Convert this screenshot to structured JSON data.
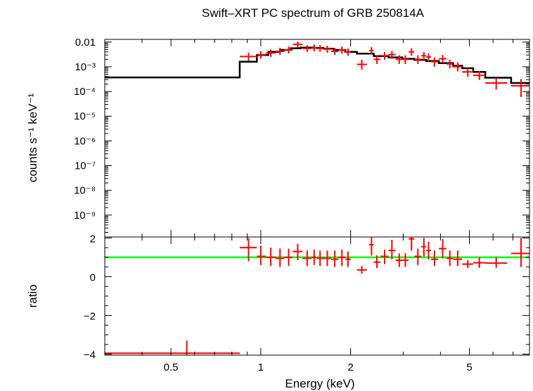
{
  "chart_data": [
    {
      "type": "scatter",
      "title": "Swift–XRT PC spectrum of GRB 250814A",
      "ylabel": "counts s⁻¹ keV⁻¹",
      "xlabel": "",
      "xscale": "log",
      "yscale": "log",
      "xlim": [
        0.3,
        7.95
      ],
      "ylim": [
        1.3e-10,
        0.0128
      ],
      "yticks": [
        {
          "value": 0.01,
          "label": "0.01"
        },
        {
          "value": 0.001,
          "label": "10⁻³"
        },
        {
          "value": 0.0001,
          "label": "10⁻⁴"
        },
        {
          "value": 1e-05,
          "label": "10⁻⁵"
        },
        {
          "value": 1e-06,
          "label": "10⁻⁶"
        },
        {
          "value": 1e-07,
          "label": "10⁻⁷"
        },
        {
          "value": 1e-08,
          "label": "10⁻⁸"
        },
        {
          "value": 1e-09,
          "label": "10⁻⁹"
        }
      ],
      "colors": {
        "data": "#ff0000",
        "model": "#000000"
      },
      "series": [
        {
          "kind": "data",
          "points": [
            {
              "x": 0.91,
              "xlo": 0.85,
              "xhi": 0.97,
              "y": 0.0026,
              "ylo": 0.0017,
              "yhi": 0.0037
            },
            {
              "x": 1.0,
              "xlo": 0.97,
              "xhi": 1.04,
              "y": 0.0031,
              "ylo": 0.0021,
              "yhi": 0.0043
            },
            {
              "x": 1.08,
              "xlo": 1.04,
              "xhi": 1.12,
              "y": 0.0036,
              "ylo": 0.0025,
              "yhi": 0.005
            },
            {
              "x": 1.16,
              "xlo": 1.12,
              "xhi": 1.2,
              "y": 0.0042,
              "ylo": 0.003,
              "yhi": 0.0058
            },
            {
              "x": 1.24,
              "xlo": 1.2,
              "xhi": 1.28,
              "y": 0.0048,
              "ylo": 0.0034,
              "yhi": 0.0066
            },
            {
              "x": 1.33,
              "xlo": 1.28,
              "xhi": 1.38,
              "y": 0.008,
              "ylo": 0.006,
              "yhi": 0.0105
            },
            {
              "x": 1.43,
              "xlo": 1.38,
              "xhi": 1.48,
              "y": 0.0055,
              "ylo": 0.004,
              "yhi": 0.0074
            },
            {
              "x": 1.51,
              "xlo": 1.48,
              "xhi": 1.54,
              "y": 0.0058,
              "ylo": 0.0042,
              "yhi": 0.0079
            },
            {
              "x": 1.58,
              "xlo": 1.54,
              "xhi": 1.62,
              "y": 0.0055,
              "ylo": 0.004,
              "yhi": 0.0075
            },
            {
              "x": 1.67,
              "xlo": 1.62,
              "xhi": 1.72,
              "y": 0.0052,
              "ylo": 0.0037,
              "yhi": 0.0071
            },
            {
              "x": 1.77,
              "xlo": 1.72,
              "xhi": 1.82,
              "y": 0.0042,
              "ylo": 0.003,
              "yhi": 0.0058
            },
            {
              "x": 1.87,
              "xlo": 1.82,
              "xhi": 1.92,
              "y": 0.0048,
              "ylo": 0.0034,
              "yhi": 0.0066
            },
            {
              "x": 1.96,
              "xlo": 1.92,
              "xhi": 2.0,
              "y": 0.004,
              "ylo": 0.0028,
              "yhi": 0.0055
            },
            {
              "x": 2.18,
              "xlo": 2.1,
              "xhi": 2.27,
              "y": 0.00125,
              "ylo": 0.00075,
              "yhi": 0.0019
            },
            {
              "x": 2.35,
              "xlo": 2.31,
              "xhi": 2.39,
              "y": 0.0045,
              "ylo": 0.0032,
              "yhi": 0.0062
            },
            {
              "x": 2.45,
              "xlo": 2.39,
              "xhi": 2.52,
              "y": 0.002,
              "ylo": 0.0013,
              "yhi": 0.0029
            },
            {
              "x": 2.6,
              "xlo": 2.52,
              "xhi": 2.68,
              "y": 0.0028,
              "ylo": 0.0019,
              "yhi": 0.0039
            },
            {
              "x": 2.75,
              "xlo": 2.68,
              "xhi": 2.83,
              "y": 0.0031,
              "ylo": 0.0021,
              "yhi": 0.0043
            },
            {
              "x": 2.91,
              "xlo": 2.83,
              "xhi": 2.98,
              "y": 0.002,
              "ylo": 0.0013,
              "yhi": 0.0029
            },
            {
              "x": 3.05,
              "xlo": 2.98,
              "xhi": 3.13,
              "y": 0.002,
              "ylo": 0.0013,
              "yhi": 0.0029
            },
            {
              "x": 3.2,
              "xlo": 3.13,
              "xhi": 3.27,
              "y": 0.004,
              "ylo": 0.0028,
              "yhi": 0.0056
            },
            {
              "x": 3.36,
              "xlo": 3.27,
              "xhi": 3.45,
              "y": 0.002,
              "ylo": 0.0013,
              "yhi": 0.0029
            },
            {
              "x": 3.52,
              "xlo": 3.45,
              "xhi": 3.58,
              "y": 0.0028,
              "ylo": 0.0019,
              "yhi": 0.0039
            },
            {
              "x": 3.65,
              "xlo": 3.58,
              "xhi": 3.72,
              "y": 0.0025,
              "ylo": 0.0017,
              "yhi": 0.0035
            },
            {
              "x": 3.82,
              "xlo": 3.72,
              "xhi": 3.93,
              "y": 0.0016,
              "ylo": 0.001,
              "yhi": 0.0024
            },
            {
              "x": 4.07,
              "xlo": 3.95,
              "xhi": 4.19,
              "y": 0.0021,
              "ylo": 0.0014,
              "yhi": 0.003
            },
            {
              "x": 4.3,
              "xlo": 4.19,
              "xhi": 4.41,
              "y": 0.0013,
              "ylo": 0.00085,
              "yhi": 0.0019
            },
            {
              "x": 4.57,
              "xlo": 4.41,
              "xhi": 4.73,
              "y": 0.001,
              "ylo": 0.00065,
              "yhi": 0.0015
            },
            {
              "x": 4.94,
              "xlo": 4.73,
              "xhi": 5.15,
              "y": 0.00062,
              "ylo": 0.00039,
              "yhi": 0.00092
            },
            {
              "x": 5.4,
              "xlo": 5.15,
              "xhi": 5.65,
              "y": 0.00045,
              "ylo": 0.00029,
              "yhi": 0.00067
            },
            {
              "x": 6.15,
              "xlo": 5.65,
              "xhi": 6.7,
              "y": 0.00022,
              "ylo": 0.00012,
              "yhi": 0.00036
            },
            {
              "x": 7.45,
              "xlo": 6.9,
              "xhi": 7.95,
              "y": 0.00017,
              "ylo": 6e-05,
              "yhi": 0.00032
            }
          ]
        },
        {
          "kind": "model",
          "steps": [
            {
              "x0": 0.3,
              "x1": 0.85,
              "y": 0.00037
            },
            {
              "x0": 0.85,
              "x1": 0.97,
              "y": 0.0016
            },
            {
              "x0": 0.97,
              "x1": 1.06,
              "y": 0.003
            },
            {
              "x0": 1.06,
              "x1": 1.16,
              "y": 0.004
            },
            {
              "x0": 1.16,
              "x1": 1.26,
              "y": 0.0048
            },
            {
              "x0": 1.26,
              "x1": 1.36,
              "y": 0.0056
            },
            {
              "x0": 1.36,
              "x1": 1.5,
              "y": 0.006
            },
            {
              "x0": 1.5,
              "x1": 1.62,
              "y": 0.0058
            },
            {
              "x0": 1.62,
              "x1": 1.76,
              "y": 0.0054
            },
            {
              "x0": 1.76,
              "x1": 1.92,
              "y": 0.0048
            },
            {
              "x0": 1.92,
              "x1": 2.1,
              "y": 0.004
            },
            {
              "x0": 2.1,
              "x1": 2.39,
              "y": 0.0034
            },
            {
              "x0": 2.39,
              "x1": 2.68,
              "y": 0.0027
            },
            {
              "x0": 2.68,
              "x1": 2.98,
              "y": 0.0024
            },
            {
              "x0": 2.98,
              "x1": 3.27,
              "y": 0.0021
            },
            {
              "x0": 3.27,
              "x1": 3.58,
              "y": 0.0019
            },
            {
              "x0": 3.58,
              "x1": 3.95,
              "y": 0.0017
            },
            {
              "x0": 3.95,
              "x1": 4.41,
              "y": 0.0014
            },
            {
              "x0": 4.41,
              "x1": 4.73,
              "y": 0.0011
            },
            {
              "x0": 4.73,
              "x1": 5.15,
              "y": 0.00087
            },
            {
              "x0": 5.15,
              "x1": 5.65,
              "y": 0.00062
            },
            {
              "x0": 5.65,
              "x1": 6.9,
              "y": 0.00036
            },
            {
              "x0": 6.9,
              "x1": 7.95,
              "y": 0.00022
            }
          ]
        }
      ]
    },
    {
      "type": "scatter",
      "ylabel": "ratio",
      "xlabel": "Energy (keV)",
      "xscale": "log",
      "xlim": [
        0.3,
        7.95
      ],
      "ylim": [
        -4.05,
        2.05
      ],
      "xticks": [
        {
          "value": 0.5,
          "label": "0.5"
        },
        {
          "value": 1,
          "label": "1"
        },
        {
          "value": 2,
          "label": "2"
        },
        {
          "value": 5,
          "label": "5"
        }
      ],
      "yticks": [
        {
          "value": 2,
          "label": "2"
        },
        {
          "value": 0,
          "label": "0"
        },
        {
          "value": -2,
          "label": "−2"
        },
        {
          "value": -4,
          "label": "−4"
        }
      ],
      "reference_line": 1,
      "colors": {
        "data": "#ff0000",
        "reference": "#00ff00"
      },
      "series": [
        {
          "kind": "data",
          "points": [
            {
              "x": 0.565,
              "xlo": 0.3,
              "xhi": 0.85,
              "y": -3.95,
              "ylo": -4.05,
              "yhi": -3.3
            },
            {
              "x": 0.91,
              "xlo": 0.85,
              "xhi": 0.97,
              "y": 1.5,
              "ylo": 0.8,
              "yhi": 2.0
            },
            {
              "x": 1.0,
              "xlo": 0.97,
              "xhi": 1.04,
              "y": 1.05,
              "ylo": 0.6,
              "yhi": 1.6
            },
            {
              "x": 1.08,
              "xlo": 1.04,
              "xhi": 1.12,
              "y": 1.0,
              "ylo": 0.55,
              "yhi": 1.5
            },
            {
              "x": 1.16,
              "xlo": 1.12,
              "xhi": 1.2,
              "y": 0.95,
              "ylo": 0.5,
              "yhi": 1.45
            },
            {
              "x": 1.24,
              "xlo": 1.2,
              "xhi": 1.28,
              "y": 1.0,
              "ylo": 0.55,
              "yhi": 1.45
            },
            {
              "x": 1.33,
              "xlo": 1.28,
              "xhi": 1.38,
              "y": 1.3,
              "ylo": 0.85,
              "yhi": 1.7
            },
            {
              "x": 1.43,
              "xlo": 1.38,
              "xhi": 1.48,
              "y": 0.95,
              "ylo": 0.55,
              "yhi": 1.35
            },
            {
              "x": 1.51,
              "xlo": 1.48,
              "xhi": 1.54,
              "y": 1.0,
              "ylo": 0.6,
              "yhi": 1.4
            },
            {
              "x": 1.58,
              "xlo": 1.54,
              "xhi": 1.62,
              "y": 0.95,
              "ylo": 0.55,
              "yhi": 1.35
            },
            {
              "x": 1.67,
              "xlo": 1.62,
              "xhi": 1.72,
              "y": 0.95,
              "ylo": 0.55,
              "yhi": 1.35
            },
            {
              "x": 1.77,
              "xlo": 1.72,
              "xhi": 1.82,
              "y": 0.9,
              "ylo": 0.5,
              "yhi": 1.35
            },
            {
              "x": 1.87,
              "xlo": 1.82,
              "xhi": 1.92,
              "y": 1.0,
              "ylo": 0.55,
              "yhi": 1.4
            },
            {
              "x": 1.96,
              "xlo": 1.92,
              "xhi": 2.0,
              "y": 0.9,
              "ylo": 0.5,
              "yhi": 1.3
            },
            {
              "x": 2.18,
              "xlo": 2.1,
              "xhi": 2.27,
              "y": 0.35,
              "ylo": 0.15,
              "yhi": 0.55
            },
            {
              "x": 2.35,
              "xlo": 2.31,
              "xhi": 2.39,
              "y": 1.65,
              "ylo": 1.1,
              "yhi": 2.05
            },
            {
              "x": 2.45,
              "xlo": 2.39,
              "xhi": 2.52,
              "y": 0.75,
              "ylo": 0.45,
              "yhi": 1.1
            },
            {
              "x": 2.6,
              "xlo": 2.52,
              "xhi": 2.68,
              "y": 1.05,
              "ylo": 0.65,
              "yhi": 1.4
            },
            {
              "x": 2.75,
              "xlo": 2.68,
              "xhi": 2.83,
              "y": 1.35,
              "ylo": 0.9,
              "yhi": 1.9
            },
            {
              "x": 2.91,
              "xlo": 2.83,
              "xhi": 2.98,
              "y": 0.85,
              "ylo": 0.5,
              "yhi": 1.2
            },
            {
              "x": 3.05,
              "xlo": 2.98,
              "xhi": 3.13,
              "y": 0.85,
              "ylo": 0.5,
              "yhi": 1.2
            },
            {
              "x": 3.2,
              "xlo": 3.13,
              "xhi": 3.27,
              "y": 1.95,
              "ylo": 1.35,
              "yhi": 2.05
            },
            {
              "x": 3.36,
              "xlo": 3.27,
              "xhi": 3.45,
              "y": 1.05,
              "ylo": 0.6,
              "yhi": 1.45
            },
            {
              "x": 3.52,
              "xlo": 3.45,
              "xhi": 3.58,
              "y": 1.55,
              "ylo": 1.05,
              "yhi": 2.0
            },
            {
              "x": 3.65,
              "xlo": 3.58,
              "xhi": 3.72,
              "y": 1.35,
              "ylo": 0.9,
              "yhi": 1.8
            },
            {
              "x": 3.82,
              "xlo": 3.72,
              "xhi": 3.93,
              "y": 0.9,
              "ylo": 0.55,
              "yhi": 1.35
            },
            {
              "x": 4.07,
              "xlo": 3.95,
              "xhi": 4.19,
              "y": 1.45,
              "ylo": 0.95,
              "yhi": 1.95
            },
            {
              "x": 4.3,
              "xlo": 4.19,
              "xhi": 4.41,
              "y": 0.95,
              "ylo": 0.55,
              "yhi": 1.35
            },
            {
              "x": 4.57,
              "xlo": 4.41,
              "xhi": 4.73,
              "y": 0.9,
              "ylo": 0.55,
              "yhi": 1.35
            },
            {
              "x": 4.94,
              "xlo": 4.73,
              "xhi": 5.15,
              "y": 0.65,
              "ylo": 0.45,
              "yhi": 0.85
            },
            {
              "x": 5.4,
              "xlo": 5.15,
              "xhi": 5.65,
              "y": 0.72,
              "ylo": 0.45,
              "yhi": 1.0
            },
            {
              "x": 6.15,
              "xlo": 5.65,
              "xhi": 6.7,
              "y": 0.7,
              "ylo": 0.45,
              "yhi": 1.0
            },
            {
              "x": 7.45,
              "xlo": 6.9,
              "xhi": 7.95,
              "y": 1.2,
              "ylo": 0.5,
              "yhi": 2.0
            }
          ]
        }
      ]
    }
  ]
}
